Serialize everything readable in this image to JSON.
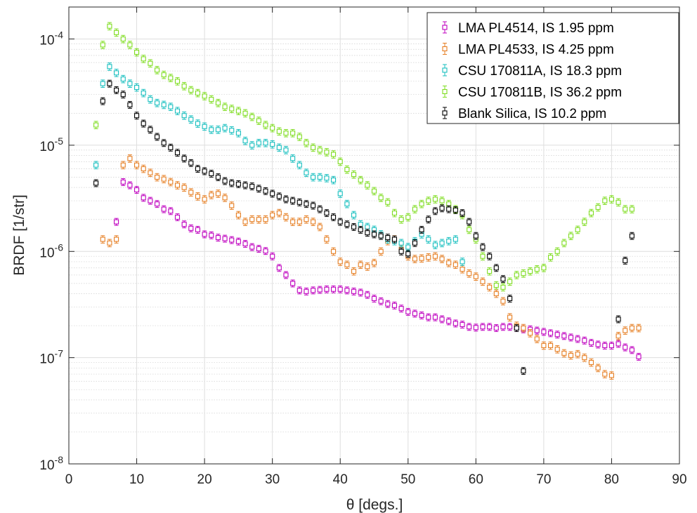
{
  "chart_data": {
    "type": "scatter",
    "xlabel": "θ  [degs.]",
    "ylabel": "BRDF [1/str]",
    "xlim": [
      0,
      90
    ],
    "ylim": [
      1e-08,
      0.0002
    ],
    "y_scale": "log",
    "grid": true,
    "minor_grid": true,
    "legend_location": "top-right",
    "x_ticks": [
      0,
      10,
      20,
      30,
      40,
      50,
      60,
      70,
      80,
      90
    ],
    "y_ticks": [
      {
        "value": 1e-08,
        "base": "10",
        "exp": "-8"
      },
      {
        "value": 1e-07,
        "base": "10",
        "exp": "-7"
      },
      {
        "value": 1e-06,
        "base": "10",
        "exp": "-6"
      },
      {
        "value": 1e-05,
        "base": "10",
        "exp": "-5"
      },
      {
        "value": 0.0001,
        "base": "10",
        "exp": "-4"
      }
    ],
    "series": [
      {
        "name": "LMA PL4514, IS 1.95 ppm",
        "color": "#bf00bf",
        "x": [
          7,
          8,
          9,
          10,
          11,
          12,
          13,
          14,
          15,
          16,
          17,
          18,
          19,
          20,
          21,
          22,
          23,
          24,
          25,
          26,
          27,
          28,
          29,
          30,
          31,
          32,
          33,
          34,
          35,
          36,
          37,
          38,
          39,
          40,
          41,
          42,
          43,
          44,
          45,
          46,
          47,
          48,
          49,
          50,
          51,
          52,
          53,
          54,
          55,
          56,
          57,
          58,
          59,
          60,
          61,
          62,
          63,
          64,
          65,
          66,
          67,
          68,
          69,
          70,
          71,
          72,
          73,
          74,
          75,
          76,
          77,
          78,
          79,
          80,
          81,
          82,
          83,
          84
        ],
        "y": [
          1.9e-06,
          4.5e-06,
          4.2e-06,
          3.8e-06,
          3.2e-06,
          3e-06,
          2.8e-06,
          2.5e-06,
          2.4e-06,
          2.1e-06,
          1.8e-06,
          1.65e-06,
          1.6e-06,
          1.45e-06,
          1.42e-06,
          1.35e-06,
          1.32e-06,
          1.28e-06,
          1.24e-06,
          1.18e-06,
          1.1e-06,
          1.06e-06,
          1.01e-06,
          9e-07,
          7e-07,
          6e-07,
          5e-07,
          4.3e-07,
          4.2e-07,
          4.3e-07,
          4.35e-07,
          4.4e-07,
          4.4e-07,
          4.4e-07,
          4.3e-07,
          4.2e-07,
          4.1e-07,
          3.9e-07,
          3.6e-07,
          3.4e-07,
          3.2e-07,
          3.1e-07,
          2.9e-07,
          2.7e-07,
          2.6e-07,
          2.5e-07,
          2.4e-07,
          2.4e-07,
          2.3e-07,
          2.2e-07,
          2.1e-07,
          2.05e-07,
          1.95e-07,
          1.92e-07,
          1.95e-07,
          1.95e-07,
          1.9e-07,
          1.95e-07,
          1.95e-07,
          1.9e-07,
          1.85e-07,
          1.85e-07,
          1.8e-07,
          1.75e-07,
          1.7e-07,
          1.65e-07,
          1.6e-07,
          1.55e-07,
          1.5e-07,
          1.45e-07,
          1.38e-07,
          1.33e-07,
          1.3e-07,
          1.3e-07,
          1.35e-07,
          1.25e-07,
          1.18e-07,
          1.02e-07
        ],
        "err": 0.045
      },
      {
        "name": "LMA PL4533, IS 4.25 ppm",
        "color": "#e67e22",
        "x": [
          5,
          6,
          7,
          8,
          9,
          10,
          11,
          12,
          13,
          14,
          15,
          16,
          17,
          18,
          19,
          20,
          21,
          22,
          23,
          24,
          25,
          26,
          27,
          28,
          29,
          30,
          31,
          32,
          33,
          34,
          35,
          36,
          37,
          38,
          39,
          40,
          41,
          42,
          43,
          44,
          45,
          46,
          47,
          48,
          49,
          50,
          51,
          52,
          53,
          54,
          55,
          56,
          57,
          58,
          59,
          60,
          61,
          62,
          63,
          64,
          65,
          66,
          67,
          68,
          69,
          70,
          71,
          72,
          73,
          74,
          75,
          76,
          77,
          78,
          79,
          80,
          81,
          82,
          83,
          84
        ],
        "y": [
          1.3e-06,
          1.2e-06,
          1.3e-06,
          6.5e-06,
          7.5e-06,
          6.5e-06,
          6e-06,
          5.5e-06,
          5e-06,
          4.8e-06,
          4.5e-06,
          4.2e-06,
          4e-06,
          3.6e-06,
          3.3e-06,
          3.1e-06,
          3.4e-06,
          3.5e-06,
          3.2e-06,
          2.7e-06,
          2.2e-06,
          1.9e-06,
          2e-06,
          2e-06,
          2e-06,
          2.2e-06,
          2.3e-06,
          2.1e-06,
          1.9e-06,
          1.9e-06,
          2e-06,
          1.9e-06,
          1.7e-06,
          1.3e-06,
          1e-06,
          8e-07,
          7.5e-07,
          6.5e-07,
          7.5e-07,
          7.2e-07,
          7.8e-07,
          1e-06,
          1.25e-06,
          1.3e-06,
          1.05e-06,
          9e-07,
          8.5e-07,
          8.6e-07,
          8.8e-07,
          9e-07,
          8.5e-07,
          7.8e-07,
          7.5e-07,
          6.8e-07,
          6.2e-07,
          5.8e-07,
          5.2e-07,
          4.6e-07,
          4e-07,
          3.4e-07,
          2.4e-07,
          2e-07,
          1.9e-07,
          1.7e-07,
          1.5e-07,
          1.3e-07,
          1.3e-07,
          1.2e-07,
          1.1e-07,
          1.05e-07,
          1.08e-07,
          1e-07,
          9e-08,
          8e-08,
          7e-08,
          6.8e-08,
          1.6e-07,
          1.8e-07,
          1.9e-07,
          1.9e-07
        ],
        "err": 0.05
      },
      {
        "name": "CSU 170811A, IS 18.3 ppm",
        "color": "#17bfbf",
        "x": [
          4,
          5,
          6,
          7,
          8,
          9,
          10,
          11,
          12,
          13,
          14,
          15,
          16,
          17,
          18,
          19,
          20,
          21,
          22,
          23,
          24,
          25,
          26,
          27,
          28,
          29,
          30,
          31,
          32,
          33,
          34,
          35,
          36,
          37,
          38,
          39,
          40,
          41,
          42,
          43,
          44,
          45,
          46,
          47,
          48,
          49,
          50,
          51,
          52,
          53,
          54,
          55,
          56,
          57,
          58
        ],
        "y": [
          6.5e-06,
          3.8e-05,
          5.5e-05,
          4.8e-05,
          4.2e-05,
          3.8e-05,
          3.5e-05,
          3.1e-05,
          2.7e-05,
          2.5e-05,
          2.4e-05,
          2.3e-05,
          2.1e-05,
          1.9e-05,
          1.75e-05,
          1.6e-05,
          1.5e-05,
          1.4e-05,
          1.4e-05,
          1.45e-05,
          1.38e-05,
          1.3e-05,
          1.1e-05,
          1e-05,
          1.05e-05,
          1.05e-05,
          1.02e-05,
          9.5e-06,
          9e-06,
          7.5e-06,
          6.5e-06,
          5.5e-06,
          5e-06,
          5e-06,
          4.9e-06,
          4.7e-06,
          3.5e-06,
          2.8e-06,
          2.2e-06,
          1.8e-06,
          1.7e-06,
          1.6e-06,
          1.45e-06,
          1.3e-06,
          1.25e-06,
          1.2e-06,
          1.1e-06,
          1.25e-06,
          1.45e-06,
          1.3e-06,
          1.15e-06,
          1.2e-06,
          1.25e-06,
          1.3e-06,
          8e-07
        ],
        "err": 0.05
      },
      {
        "name": "CSU 170811B, IS 36.2 ppm",
        "color": "#7fdd20",
        "x": [
          4,
          5,
          6,
          7,
          8,
          9,
          10,
          11,
          12,
          13,
          14,
          15,
          16,
          17,
          18,
          19,
          20,
          21,
          22,
          23,
          24,
          25,
          26,
          27,
          28,
          29,
          30,
          31,
          32,
          33,
          34,
          35,
          36,
          37,
          38,
          39,
          40,
          41,
          42,
          43,
          44,
          45,
          46,
          47,
          48,
          49,
          50,
          51,
          52,
          53,
          54,
          55,
          56,
          57,
          58,
          59,
          60,
          61,
          62,
          63,
          64,
          65,
          66,
          67,
          68,
          69,
          70,
          71,
          72,
          73,
          74,
          75,
          76,
          77,
          78,
          79,
          80,
          81,
          82,
          83
        ],
        "y": [
          1.55e-05,
          8.8e-05,
          0.000132,
          0.000115,
          0.0001,
          8.8e-05,
          7.5e-05,
          6.5e-05,
          5.9e-05,
          5.1e-05,
          4.6e-05,
          4.3e-05,
          4e-05,
          3.6e-05,
          3.3e-05,
          3.1e-05,
          2.9e-05,
          2.7e-05,
          2.5e-05,
          2.3e-05,
          2.2e-05,
          2.1e-05,
          2e-05,
          1.85e-05,
          1.7e-05,
          1.55e-05,
          1.45e-05,
          1.35e-05,
          1.3e-05,
          1.3e-05,
          1.2e-05,
          1.05e-05,
          9.5e-06,
          9e-06,
          8.6e-06,
          8.2e-06,
          7e-06,
          5.9e-06,
          5.3e-06,
          4.7e-06,
          4.2e-06,
          3.7e-06,
          3.2e-06,
          2.9e-06,
          2.3e-06,
          2e-06,
          2.1e-06,
          2.5e-06,
          2.8e-06,
          3e-06,
          3.1e-06,
          3e-06,
          2.8e-06,
          2.5e-06,
          2.2e-06,
          1.6e-06,
          1.3e-06,
          9e-07,
          6.5e-07,
          4.8e-07,
          4.6e-07,
          5.2e-07,
          6e-07,
          6.2e-07,
          6.5e-07,
          6.8e-07,
          7e-07,
          8.8e-07,
          1e-06,
          1.2e-06,
          1.4e-06,
          1.6e-06,
          1.9e-06,
          2.3e-06,
          2.6e-06,
          3e-06,
          3.1e-06,
          2.9e-06,
          2.5e-06,
          2.5e-06
        ],
        "err": 0.05
      },
      {
        "name": "Blank Silica, IS 10.2 ppm",
        "color": "#000000",
        "x": [
          4,
          5,
          6,
          7,
          8,
          9,
          10,
          11,
          12,
          13,
          14,
          15,
          16,
          17,
          18,
          19,
          20,
          21,
          22,
          23,
          24,
          25,
          26,
          27,
          28,
          29,
          30,
          31,
          32,
          33,
          34,
          35,
          36,
          37,
          38,
          39,
          40,
          41,
          42,
          43,
          44,
          45,
          46,
          47,
          48,
          49,
          50,
          51,
          52,
          53,
          54,
          55,
          56,
          57,
          58,
          59,
          60,
          61,
          62,
          63,
          64,
          65,
          66,
          67,
          81,
          82,
          83
        ],
        "y": [
          4.4e-06,
          2.6e-05,
          3.8e-05,
          3.3e-05,
          3e-05,
          2.4e-05,
          1.9e-05,
          1.6e-05,
          1.4e-05,
          1.2e-05,
          1.05e-05,
          9.5e-06,
          8.5e-06,
          7.5e-06,
          6.8e-06,
          6e-06,
          5.7e-06,
          5.4e-06,
          5e-06,
          4.6e-06,
          4.4e-06,
          4.3e-06,
          4.2e-06,
          4.1e-06,
          3.9e-06,
          3.7e-06,
          3.5e-06,
          3.3e-06,
          3.1e-06,
          3e-06,
          2.9e-06,
          2.8e-06,
          2.7e-06,
          2.5e-06,
          2.3e-06,
          2.1e-06,
          1.9e-06,
          1.8e-06,
          1.7e-06,
          1.6e-06,
          1.5e-06,
          1.45e-06,
          1.4e-06,
          1.35e-06,
          1.3e-06,
          1e-06,
          9.5e-07,
          1.2e-06,
          1.6e-06,
          2e-06,
          2.4e-06,
          2.55e-06,
          2.5e-06,
          2.45e-06,
          2.3e-06,
          1.9e-06,
          1.4e-06,
          1.1e-06,
          9e-07,
          7e-07,
          5.5e-07,
          3.6e-07,
          1.9e-07,
          7.5e-08,
          2.3e-07,
          8.2e-07,
          1.4e-06
        ],
        "err": 0.045
      }
    ]
  }
}
